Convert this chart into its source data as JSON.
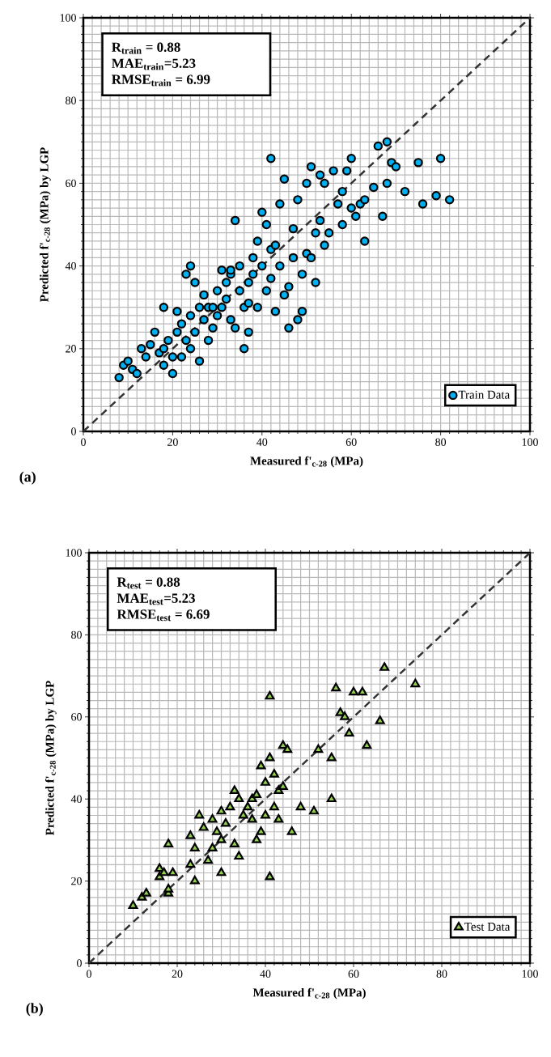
{
  "chart_data": [
    {
      "type": "scatter",
      "xlabel": "Measured f'$_{c-28}$ (MPa)",
      "ylabel": "Predicted f'$_{c-28}$ (MPa) by LGP",
      "annotations": [
        "R$_{train}$ = 0.88",
        "MAE$_{train}$=5.23",
        "RMSE$_{train}$ = 6.99",
        "(a)"
      ],
      "xlim": [
        0,
        100
      ],
      "ylim": [
        0,
        100
      ],
      "xticks": [
        0,
        20,
        40,
        60,
        80,
        100
      ],
      "yticks": [
        0,
        20,
        40,
        60,
        80,
        100
      ],
      "grid": true,
      "legend": "bottom right",
      "series": [
        {
          "type": "line",
          "line_style": "dashed",
          "color": "#333333",
          "x": [
            0,
            100
          ],
          "values": [
            0,
            100
          ]
        },
        {
          "name": "Train Data",
          "marker": "circle",
          "color": "#00b0f0",
          "x": [
            8,
            9,
            10,
            11,
            12,
            13,
            14,
            15,
            16,
            17,
            18,
            18,
            18,
            19,
            20,
            20,
            21,
            21,
            22,
            22,
            23,
            23,
            24,
            24,
            24,
            25,
            25,
            26,
            26,
            27,
            27,
            28,
            28,
            29,
            30,
            30,
            31,
            31,
            32,
            32,
            33,
            33,
            34,
            34,
            35,
            35,
            36,
            36,
            37,
            37,
            38,
            38,
            39,
            39,
            40,
            40,
            41,
            41,
            42,
            42,
            43,
            43,
            44,
            44,
            45,
            45,
            46,
            46,
            47,
            47,
            48,
            48,
            49,
            49,
            50,
            50,
            51,
            51,
            52,
            52,
            53,
            53,
            54,
            54,
            55,
            56,
            57,
            58,
            58,
            59,
            60,
            60,
            61,
            62,
            63,
            63,
            65,
            66,
            67,
            68,
            68,
            69,
            70,
            72,
            75,
            76,
            79,
            80,
            82,
            42,
            33,
            29,
            37
          ],
          "values": [
            13,
            16,
            17,
            15,
            14,
            20,
            18,
            21,
            24,
            19,
            16,
            20,
            30,
            22,
            14,
            18,
            24,
            29,
            18,
            26,
            22,
            38,
            40,
            20,
            28,
            36,
            24,
            30,
            17,
            27,
            33,
            22,
            30,
            25,
            34,
            28,
            39,
            30,
            32,
            36,
            38,
            27,
            51,
            25,
            34,
            40,
            30,
            20,
            24,
            36,
            38,
            42,
            46,
            30,
            53,
            40,
            50,
            34,
            44,
            37,
            45,
            29,
            55,
            40,
            61,
            33,
            35,
            25,
            49,
            42,
            56,
            27,
            38,
            29,
            60,
            43,
            64,
            42,
            48,
            36,
            62,
            51,
            45,
            60,
            48,
            63,
            55,
            58,
            50,
            63,
            66,
            54,
            52,
            55,
            46,
            56,
            59,
            69,
            52,
            70,
            60,
            65,
            64,
            58,
            65,
            55,
            57,
            66,
            56,
            66,
            39,
            30,
            31
          ]
        }
      ]
    },
    {
      "type": "scatter",
      "xlabel": "Measured f'$_{c-28}$ (MPa)",
      "ylabel": "Predicted f'$_{c-28}$ (MPa) by LGP",
      "annotations": [
        "R$_{test}$ = 0.88",
        "MAE$_{test}$=5.23",
        "RMSE$_{test}$ = 6.69",
        "(b)"
      ],
      "xlim": [
        0,
        100
      ],
      "ylim": [
        0,
        100
      ],
      "xticks": [
        0,
        20,
        40,
        60,
        80,
        100
      ],
      "yticks": [
        0,
        20,
        40,
        60,
        80,
        100
      ],
      "grid": true,
      "legend": "bottom right",
      "series": [
        {
          "type": "line",
          "line_style": "dashed",
          "color": "#333333",
          "x": [
            0,
            100
          ],
          "values": [
            0,
            100
          ]
        },
        {
          "name": "Test Data",
          "marker": "triangle",
          "color": "#92d050",
          "x": [
            10,
            12,
            13,
            16,
            16,
            17,
            18,
            18,
            18,
            19,
            23,
            23,
            24,
            24,
            25,
            26,
            27,
            28,
            28,
            29,
            30,
            30,
            30,
            31,
            32,
            33,
            33,
            34,
            34,
            35,
            36,
            37,
            37,
            38,
            38,
            39,
            39,
            40,
            40,
            41,
            41,
            41,
            42,
            42,
            43,
            43,
            44,
            44,
            45,
            46,
            48,
            51,
            52,
            55,
            55,
            56,
            57,
            58,
            59,
            60,
            62,
            63,
            66,
            67,
            74
          ],
          "values": [
            14,
            16,
            17,
            21,
            23,
            22,
            17,
            18,
            29,
            22,
            24,
            31,
            20,
            28,
            36,
            33,
            25,
            35,
            28,
            32,
            22,
            30,
            37,
            34,
            38,
            42,
            29,
            26,
            40,
            36,
            38,
            35,
            40,
            41,
            30,
            32,
            48,
            36,
            44,
            50,
            65,
            21,
            46,
            38,
            42,
            35,
            53,
            43,
            52,
            32,
            38,
            37,
            52,
            50,
            40,
            67,
            61,
            60,
            56,
            66,
            66,
            53,
            59,
            72,
            68
          ]
        }
      ]
    }
  ]
}
